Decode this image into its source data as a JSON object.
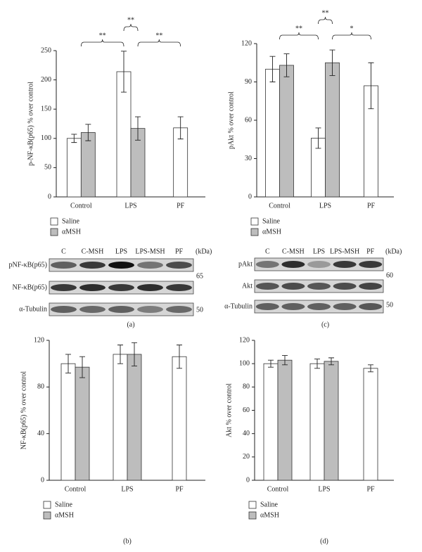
{
  "chart_data": [
    {
      "type": "bar",
      "panel": "(a)",
      "y_label": "p-NF-κB(p65) % over control",
      "categories": [
        "Control",
        "LPS",
        "PF"
      ],
      "series": [
        {
          "name": "Saline",
          "color": "#ffffff",
          "values": [
            100,
            214,
            118
          ],
          "errors": [
            7,
            35,
            19
          ]
        },
        {
          "name": "αMSH",
          "color": "#bdbdbd",
          "values": [
            110,
            117,
            null
          ],
          "errors": [
            14,
            20,
            null
          ]
        }
      ],
      "ylim": [
        0,
        250
      ],
      "yticks": [
        0,
        50,
        100,
        150,
        200,
        250
      ],
      "annotations": [
        "**",
        "**",
        "**"
      ]
    },
    {
      "type": "bar",
      "panel": "(b)",
      "y_label": "NF-κB(p65) % over control",
      "categories": [
        "Control",
        "LPS",
        "PF"
      ],
      "series": [
        {
          "name": "Saline",
          "color": "#ffffff",
          "values": [
            100,
            108,
            106
          ],
          "errors": [
            8,
            8,
            10
          ]
        },
        {
          "name": "αMSH",
          "color": "#bdbdbd",
          "values": [
            97,
            108,
            null
          ],
          "errors": [
            9,
            10,
            null
          ]
        }
      ],
      "ylim": [
        0,
        120
      ],
      "yticks": [
        0,
        40,
        80,
        120
      ]
    },
    {
      "type": "bar",
      "panel": "(c)",
      "y_label": "pAkt % over control",
      "categories": [
        "Control",
        "LPS",
        "PF"
      ],
      "series": [
        {
          "name": "Saline",
          "color": "#ffffff",
          "values": [
            100,
            46,
            87
          ],
          "errors": [
            10,
            8,
            18
          ]
        },
        {
          "name": "αMSH",
          "color": "#bdbdbd",
          "values": [
            103,
            105,
            null
          ],
          "errors": [
            9,
            10,
            null
          ]
        }
      ],
      "ylim": [
        0,
        120
      ],
      "yticks": [
        0,
        30,
        60,
        90,
        120
      ],
      "annotations": [
        "**",
        "**",
        "*"
      ]
    },
    {
      "type": "bar",
      "panel": "(d)",
      "y_label": "Akt % over control",
      "categories": [
        "Control",
        "LPS",
        "PF"
      ],
      "series": [
        {
          "name": "Saline",
          "color": "#ffffff",
          "values": [
            100,
            100,
            96
          ],
          "errors": [
            3,
            4,
            3
          ]
        },
        {
          "name": "αMSH",
          "color": "#bdbdbd",
          "values": [
            103,
            102,
            null
          ],
          "errors": [
            4,
            3,
            null
          ]
        }
      ],
      "ylim": [
        0,
        120
      ],
      "yticks": [
        0,
        20,
        40,
        60,
        80,
        100,
        120
      ]
    }
  ],
  "blots": [
    {
      "lanes": [
        "C",
        "C-MSH",
        "LPS",
        "LPS-MSH",
        "PF"
      ],
      "unit": "(kDa)",
      "rows": [
        "pNF-κB(p65)",
        "NF-κB(p65)",
        "α-Tubulin"
      ],
      "markers": [
        65,
        50
      ]
    },
    {
      "lanes": [
        "C",
        "C-MSH",
        "LPS",
        "LPS-MSH",
        "PF"
      ],
      "unit": "(kDa)",
      "rows": [
        "pAkt",
        "Akt",
        "α-Tubulin"
      ],
      "markers": [
        60,
        50
      ]
    }
  ]
}
